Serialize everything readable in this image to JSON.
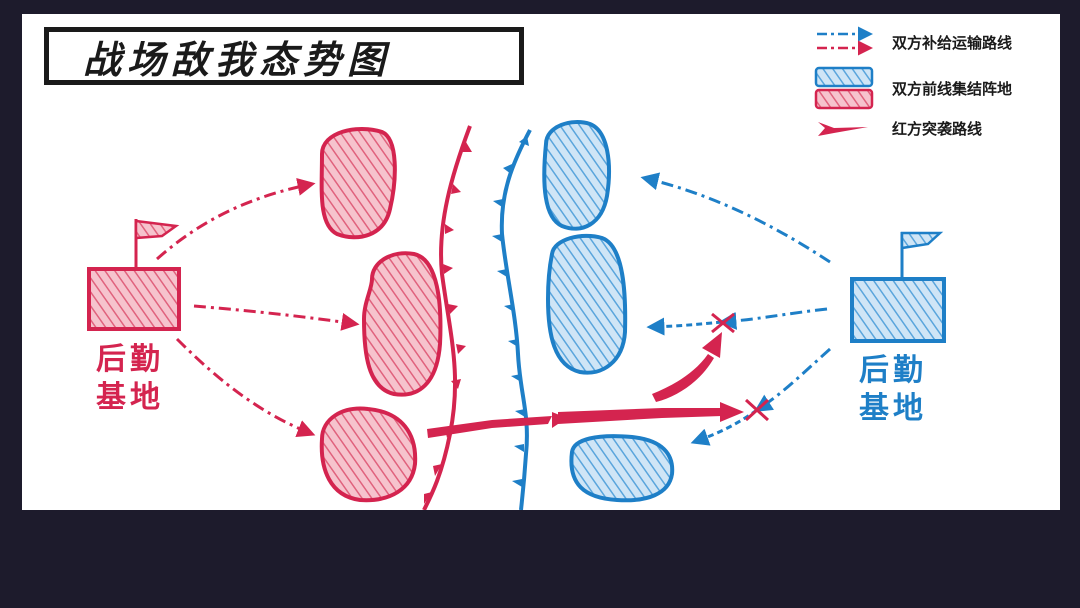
{
  "title": "战场敌我态势图",
  "legend": {
    "supply_route": "双方补给运输路线",
    "frontline_camp": "双方前线集结阵地",
    "red_raid_route": "红方突袭路线"
  },
  "red_base": {
    "label_line1": "后勤",
    "label_line2": "基地"
  },
  "blue_base": {
    "label_line1": "后勤",
    "label_line2": "基地"
  },
  "colors": {
    "red": "#d4244f",
    "red_fill": "#ee97a8",
    "blue": "#1e7fc7",
    "blue_fill": "#9ac8ea",
    "background": "#1d1b2c"
  },
  "icons": [
    "flag-icon",
    "cross-mark-icon",
    "arrow-icon"
  ]
}
